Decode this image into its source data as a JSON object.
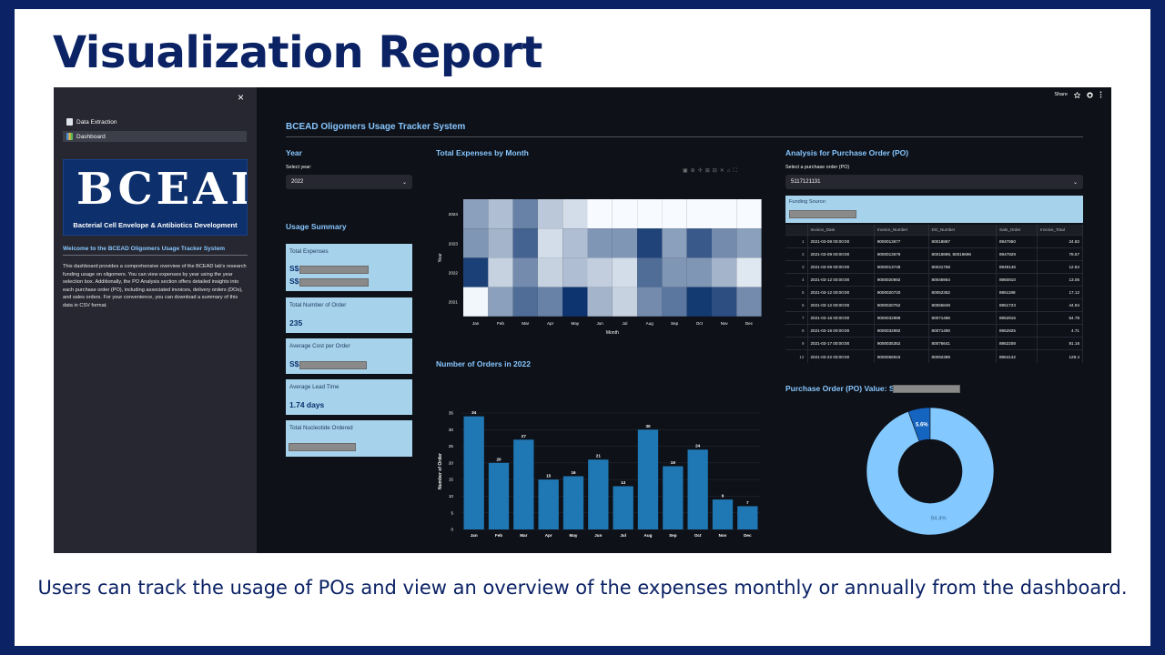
{
  "slide": {
    "title": "Visualization Report",
    "caption": "Users can track the usage of POs and view an overview of the expenses monthly or annually from the dashboard."
  },
  "sidebar": {
    "close_glyph": "×",
    "items": [
      {
        "label": "Data Extraction",
        "icon": "document-icon",
        "active": false
      },
      {
        "label": "Dashboard",
        "icon": "bar-chart-icon",
        "active": true
      }
    ],
    "logo": {
      "text": "BCEAD",
      "subtitle": "Bacterial Cell Envelope & Antibiotics Development"
    },
    "welcome_title": "Welcome to the BCEAD Oligomers Usage Tracker System",
    "welcome_body": "This dashboard provides a comprehensive overview of the BCEAD lab's research funding usage on oligomers. You can view expenses by year using the year selection box. Additionally, the PO Analysis section offers detailed insights into each purchase order (PO), including associated invoices, delivery orders (DOs), and sales orders. For your convenience, you can download a summary of this data in CSV format."
  },
  "toolbar": {
    "share_label": "Share"
  },
  "main": {
    "title": "BCEAD Oligomers Usage Tracker System",
    "year_section": {
      "heading": "Year",
      "select_label": "Select year:",
      "selected": "2022"
    },
    "usage_summary": {
      "heading": "Usage Summary",
      "cards": [
        {
          "label": "Total Expenses",
          "lines": [
            "S$",
            "S$"
          ]
        },
        {
          "label": "Total Number of Order",
          "value": "235"
        },
        {
          "label": "Average Cost per Order",
          "value": "S$"
        },
        {
          "label": "Average Lead Time",
          "value": "1.74 days"
        },
        {
          "label": "Total Nucleotide Ordered"
        }
      ]
    },
    "po_section": {
      "heading": "Analysis for Purchase Order (PO)",
      "select_label": "Select a purchase order (PO)",
      "selected": "5117121131",
      "funding_label": "Funding Source:",
      "table": {
        "columns": [
          "Invoice_Date",
          "Invoice_Number",
          "DO_Number",
          "Sale_Order",
          "Invoice_Total"
        ],
        "rows": [
          [
            "1",
            "2021-03-09 00:00:00",
            "9000013677",
            "80018887",
            "8947650",
            "24.82"
          ],
          [
            "2",
            "2021-03-09 00:00:00",
            "9000013679",
            "80018889, 80019696",
            "8947829",
            "78.57"
          ],
          [
            "3",
            "2021-03-09 00:00:00",
            "9000013749",
            "80031758",
            "8949146",
            "12.84"
          ],
          [
            "4",
            "2021-03-12 00:00:00",
            "9000020692",
            "80046954",
            "8950810",
            "13.05"
          ],
          [
            "5",
            "2021-03-12 00:00:00",
            "9000020720",
            "80052352",
            "8951198",
            "17.12"
          ],
          [
            "6",
            "2021-03-12 00:00:00",
            "9000020752",
            "80055849",
            "8951723",
            "44.94"
          ],
          [
            "7",
            "2021-03-16 00:00:00",
            "9000032989",
            "80071486",
            "8952815",
            "54.78"
          ],
          [
            "8",
            "2021-03-16 00:00:00",
            "9000032992",
            "80071490",
            "8952825",
            "4.71"
          ],
          [
            "9",
            "2021-03-17 00:00:00",
            "9000035352",
            "80076641",
            "8952208",
            "91.16"
          ],
          [
            "12",
            "2021-03-22 00:00:00",
            "9000056915",
            "80092389",
            "8954142",
            "128.4"
          ]
        ]
      },
      "po_value_heading": "Purchase Order (PO) Value: S"
    }
  },
  "chart_data": [
    {
      "type": "heatmap",
      "title": "Total Expenses by Month",
      "xlabel": "Month",
      "ylabel": "Year",
      "x": [
        "Jan",
        "Feb",
        "Mar",
        "Apr",
        "May",
        "Jun",
        "Jul",
        "Aug",
        "Sep",
        "Oct",
        "Nov",
        "Dec"
      ],
      "y": [
        "2024",
        "2023",
        "2022",
        "2021"
      ],
      "values": [
        [
          0.45,
          0.3,
          0.6,
          0.25,
          0.15,
          0,
          0,
          0,
          0,
          0,
          0,
          0
        ],
        [
          0.5,
          0.35,
          0.75,
          0.15,
          0.3,
          0.5,
          0.5,
          0.9,
          0.45,
          0.8,
          0.55,
          0.45
        ],
        [
          0.92,
          0.2,
          0.55,
          0.2,
          0.3,
          0.22,
          0.15,
          0.7,
          0.5,
          0.5,
          0.35,
          0.1
        ],
        [
          0.02,
          0.45,
          0.7,
          0.6,
          0.98,
          0.35,
          0.2,
          0.55,
          0.65,
          0.95,
          0.85,
          0.55
        ]
      ]
    },
    {
      "type": "bar",
      "title": "Number of Orders in 2022",
      "xlabel": "",
      "ylabel": "Number of Order",
      "categories": [
        "Jan",
        "Feb",
        "Mar",
        "Apr",
        "May",
        "Jun",
        "Jul",
        "Aug",
        "Sep",
        "Oct",
        "Nov",
        "Dec"
      ],
      "values": [
        34,
        20,
        27,
        15,
        16,
        21,
        13,
        30,
        19,
        24,
        9,
        7
      ],
      "ylim": [
        0,
        35
      ],
      "yticks": [
        0,
        5,
        10,
        15,
        20,
        25,
        30,
        35
      ],
      "color": "#1f77b4"
    },
    {
      "type": "pie",
      "title": "",
      "labels": [
        "5.6%",
        "94.4%"
      ],
      "values": [
        5.6,
        94.4
      ],
      "colors": [
        "#1565c0",
        "#83c9ff"
      ]
    }
  ]
}
